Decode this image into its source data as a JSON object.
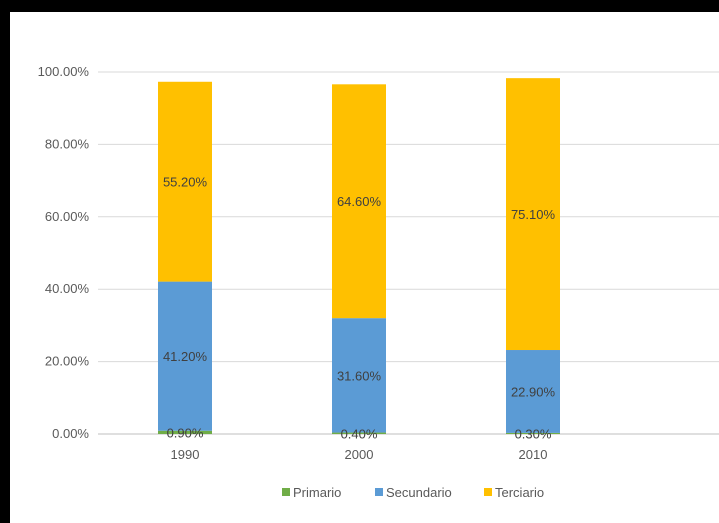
{
  "chart_data": {
    "type": "bar",
    "stacked": true,
    "title": "",
    "xlabel": "",
    "ylabel": "",
    "categories": [
      "1990",
      "2000",
      "2010"
    ],
    "ylim": [
      0,
      100
    ],
    "yticks": [
      0,
      20,
      40,
      60,
      80,
      100
    ],
    "ytick_labels": [
      "0.00%",
      "20.00%",
      "40.00%",
      "60.00%",
      "80.00%",
      "100.00%"
    ],
    "grid": true,
    "legend_position": "bottom",
    "series": [
      {
        "name": "Primario",
        "color": "#70AD47",
        "values": [
          0.9,
          0.4,
          0.3
        ],
        "labels": [
          "0.90%",
          "0.40%",
          "0.30%"
        ]
      },
      {
        "name": "Secundario",
        "color": "#5B9BD5",
        "values": [
          41.2,
          31.6,
          22.9
        ],
        "labels": [
          "41.20%",
          "31.60%",
          "22.90%"
        ]
      },
      {
        "name": "Terciario",
        "color": "#FFC000",
        "values": [
          55.2,
          64.6,
          75.1
        ],
        "labels": [
          "55.20%",
          "64.60%",
          "75.10%"
        ]
      }
    ]
  }
}
